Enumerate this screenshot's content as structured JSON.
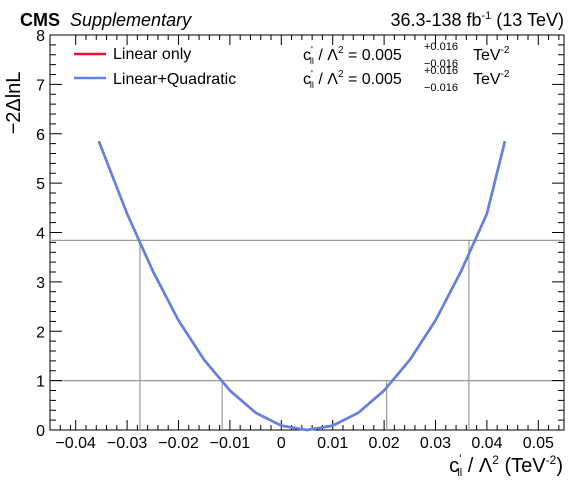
{
  "header": {
    "experiment": "CMS",
    "qualifier": "Supplementary",
    "lumi_prefix": "36.3-138 fb",
    "lumi_exp": "-1",
    "lumi_suffix": " (13 TeV)"
  },
  "chart_data": {
    "type": "line",
    "title": "",
    "xlabel": "c'∥ / Λ² (TeV⁻²)",
    "xlabel_parts": {
      "coef": "c",
      "prime": "'",
      "sub": "ll",
      "mid": " / Λ",
      "sq": "2",
      "unit": " (TeV",
      "unit_exp": "-2",
      "close": ")"
    },
    "ylabel": "−2ΔlnL",
    "xlim": [
      -0.045,
      0.055
    ],
    "ylim": [
      0,
      8
    ],
    "xticks": [
      "−0.04",
      "−0.03",
      "−0.02",
      "−0.01",
      "0",
      "0.01",
      "0.02",
      "0.03",
      "0.04",
      "0.05"
    ],
    "xtick_values": [
      -0.04,
      -0.03,
      -0.02,
      -0.01,
      0,
      0.01,
      0.02,
      0.03,
      0.04,
      0.05
    ],
    "yticks": [
      "0",
      "1",
      "2",
      "3",
      "4",
      "5",
      "6",
      "7",
      "8"
    ],
    "ytick_values": [
      0,
      1,
      2,
      3,
      4,
      5,
      6,
      7,
      8
    ],
    "grid": false,
    "legend_position": "top-left",
    "reference_lines": {
      "horizontal": [
        1,
        3.84
      ],
      "vertical": [
        -0.0275,
        -0.0115,
        0.0205,
        0.0365
      ]
    },
    "series": [
      {
        "name": "Linear only",
        "color": "#e8142c",
        "x": [
          -0.0355,
          -0.03,
          -0.025,
          -0.02,
          -0.015,
          -0.01,
          -0.005,
          0.0,
          0.005,
          0.01,
          0.015,
          0.02,
          0.025,
          0.03,
          0.035,
          0.04,
          0.0435
        ],
        "y": [
          5.85,
          4.38,
          3.22,
          2.22,
          1.42,
          0.8,
          0.35,
          0.09,
          0.0,
          0.09,
          0.35,
          0.8,
          1.42,
          2.22,
          3.22,
          4.38,
          5.85
        ],
        "result": {
          "value": "0.005",
          "up": "+0.016",
          "down": "−0.016",
          "unit": "TeV",
          "unit_exp": "-2"
        }
      },
      {
        "name": "Linear+Quadratic",
        "color": "#5b84e5",
        "x": [
          -0.0355,
          -0.03,
          -0.025,
          -0.02,
          -0.015,
          -0.01,
          -0.005,
          0.0,
          0.005,
          0.01,
          0.015,
          0.02,
          0.025,
          0.03,
          0.035,
          0.04,
          0.0435
        ],
        "y": [
          5.85,
          4.38,
          3.22,
          2.22,
          1.42,
          0.8,
          0.35,
          0.09,
          0.0,
          0.09,
          0.35,
          0.8,
          1.42,
          2.22,
          3.22,
          4.38,
          5.85
        ],
        "result": {
          "value": "0.005",
          "up": "+0.016",
          "down": "−0.016",
          "unit": "TeV",
          "unit_exp": "-2"
        }
      }
    ]
  }
}
